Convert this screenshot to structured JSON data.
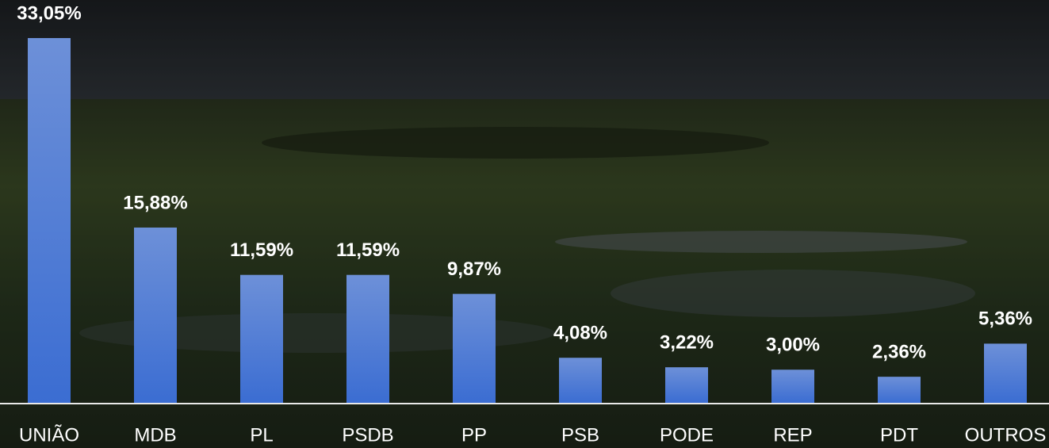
{
  "chart_data": {
    "type": "bar",
    "categories": [
      "UNIÃO",
      "MDB",
      "PL",
      "PSDB",
      "PP",
      "PSB",
      "PODE",
      "REP",
      "PDT",
      "OUTROS"
    ],
    "values": [
      33.05,
      15.88,
      11.59,
      11.59,
      9.87,
      4.08,
      3.22,
      3.0,
      2.36,
      5.36
    ],
    "value_labels": [
      "33,05%",
      "15,88%",
      "11,59%",
      "11,59%",
      "9,87%",
      "4,08%",
      "3,22%",
      "3,00%",
      "2,36%",
      "5,36%"
    ],
    "color": "#4a7ad6"
  }
}
